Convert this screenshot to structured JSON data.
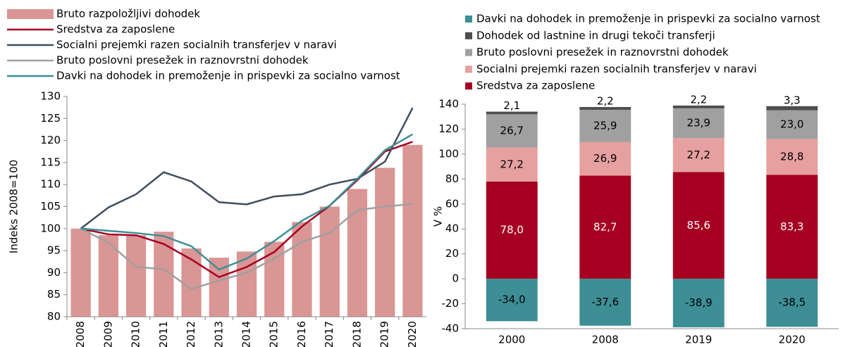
{
  "chart_data": [
    {
      "type": "combo",
      "y_label": "Indeks 2008=100",
      "categories": [
        "2008",
        "2009",
        "2010",
        "2011",
        "2012",
        "2013",
        "2014",
        "2015",
        "2016",
        "2017",
        "2018",
        "2019",
        "2020"
      ],
      "ylim": [
        80,
        130
      ],
      "yticks": [
        80,
        85,
        90,
        95,
        100,
        105,
        110,
        115,
        120,
        125,
        130
      ],
      "series": [
        {
          "name": "Bruto razpoložljivi dohodek",
          "type": "bar",
          "color": "#d99694",
          "values": [
            100,
            98.5,
            98.5,
            99.3,
            95.5,
            93.4,
            94.8,
            97,
            101.5,
            105,
            109,
            113.8,
            119
          ]
        },
        {
          "name": "Sredstva za zaposlene",
          "type": "line",
          "color": "#a50021",
          "values": [
            100,
            98.7,
            98.5,
            96.5,
            93,
            89,
            91.3,
            94.7,
            100.5,
            105.2,
            111,
            117.5,
            119.7
          ]
        },
        {
          "name": "Socialni prejemki razen socialnih transferjev v naravi",
          "type": "line",
          "color": "#3f4e5e",
          "values": [
            100,
            104.8,
            107.8,
            112.8,
            110.7,
            106,
            105.5,
            107.3,
            107.8,
            110,
            111.3,
            115.2,
            127.4
          ]
        },
        {
          "name": "Bruto poslovni presežek in raznovrstni dohodek",
          "type": "line",
          "color": "#a0a0a0",
          "values": [
            100,
            96.8,
            91.3,
            90.8,
            86.3,
            88.2,
            90,
            93.2,
            97,
            99,
            104.2,
            105,
            105.6
          ]
        },
        {
          "name": "Davki na dohodek in premoženje in prispevki za socialno varnost",
          "type": "line",
          "color": "#3d8e95",
          "values": [
            100,
            99.5,
            99,
            98.3,
            96,
            90.7,
            93.2,
            97.2,
            101.8,
            105.2,
            111.3,
            117.8,
            121.4
          ]
        }
      ]
    },
    {
      "type": "stacked_bar",
      "y_label": "V %",
      "categories": [
        "2000",
        "2008",
        "2019",
        "2020"
      ],
      "ylim": [
        -40,
        140
      ],
      "yticks": [
        -40,
        -20,
        0,
        20,
        40,
        60,
        80,
        100,
        120,
        140
      ],
      "series": [
        {
          "name": "Davki na dohodek in premoženje in prispevki za socialno varnost",
          "color": "#3d8e95",
          "values": [
            -34.0,
            -37.6,
            -38.9,
            -38.5
          ],
          "value_labels": [
            "-34,0",
            "-37,6",
            "-38,9",
            "-38,5"
          ]
        },
        {
          "name": "Dohodek od lastnine in drugi tekoči transferji",
          "color": "#4d4d4d",
          "values": [
            2.1,
            2.2,
            2.2,
            3.3
          ],
          "value_labels": [
            "2,1",
            "2,2",
            "2,2",
            "3,3"
          ]
        },
        {
          "name": "Bruto poslovni presežek in raznovrstni dohodek",
          "color": "#a0a0a0",
          "values": [
            26.7,
            25.9,
            23.9,
            23.0
          ],
          "value_labels": [
            "26,7",
            "25,9",
            "23,9",
            "23,0"
          ]
        },
        {
          "name": "Socialni prejemki razen socialnih transferjev v naravi",
          "color": "#e6a0a0",
          "values": [
            27.2,
            26.9,
            27.2,
            28.8
          ],
          "value_labels": [
            "27,2",
            "26,9",
            "27,2",
            "28,8"
          ]
        },
        {
          "name": "Sredstva za zaposlene",
          "color": "#a50021",
          "values": [
            78.0,
            82.7,
            85.6,
            83.3
          ],
          "value_labels": [
            "78,0",
            "82,7",
            "85,6",
            "83,3"
          ]
        }
      ]
    }
  ]
}
